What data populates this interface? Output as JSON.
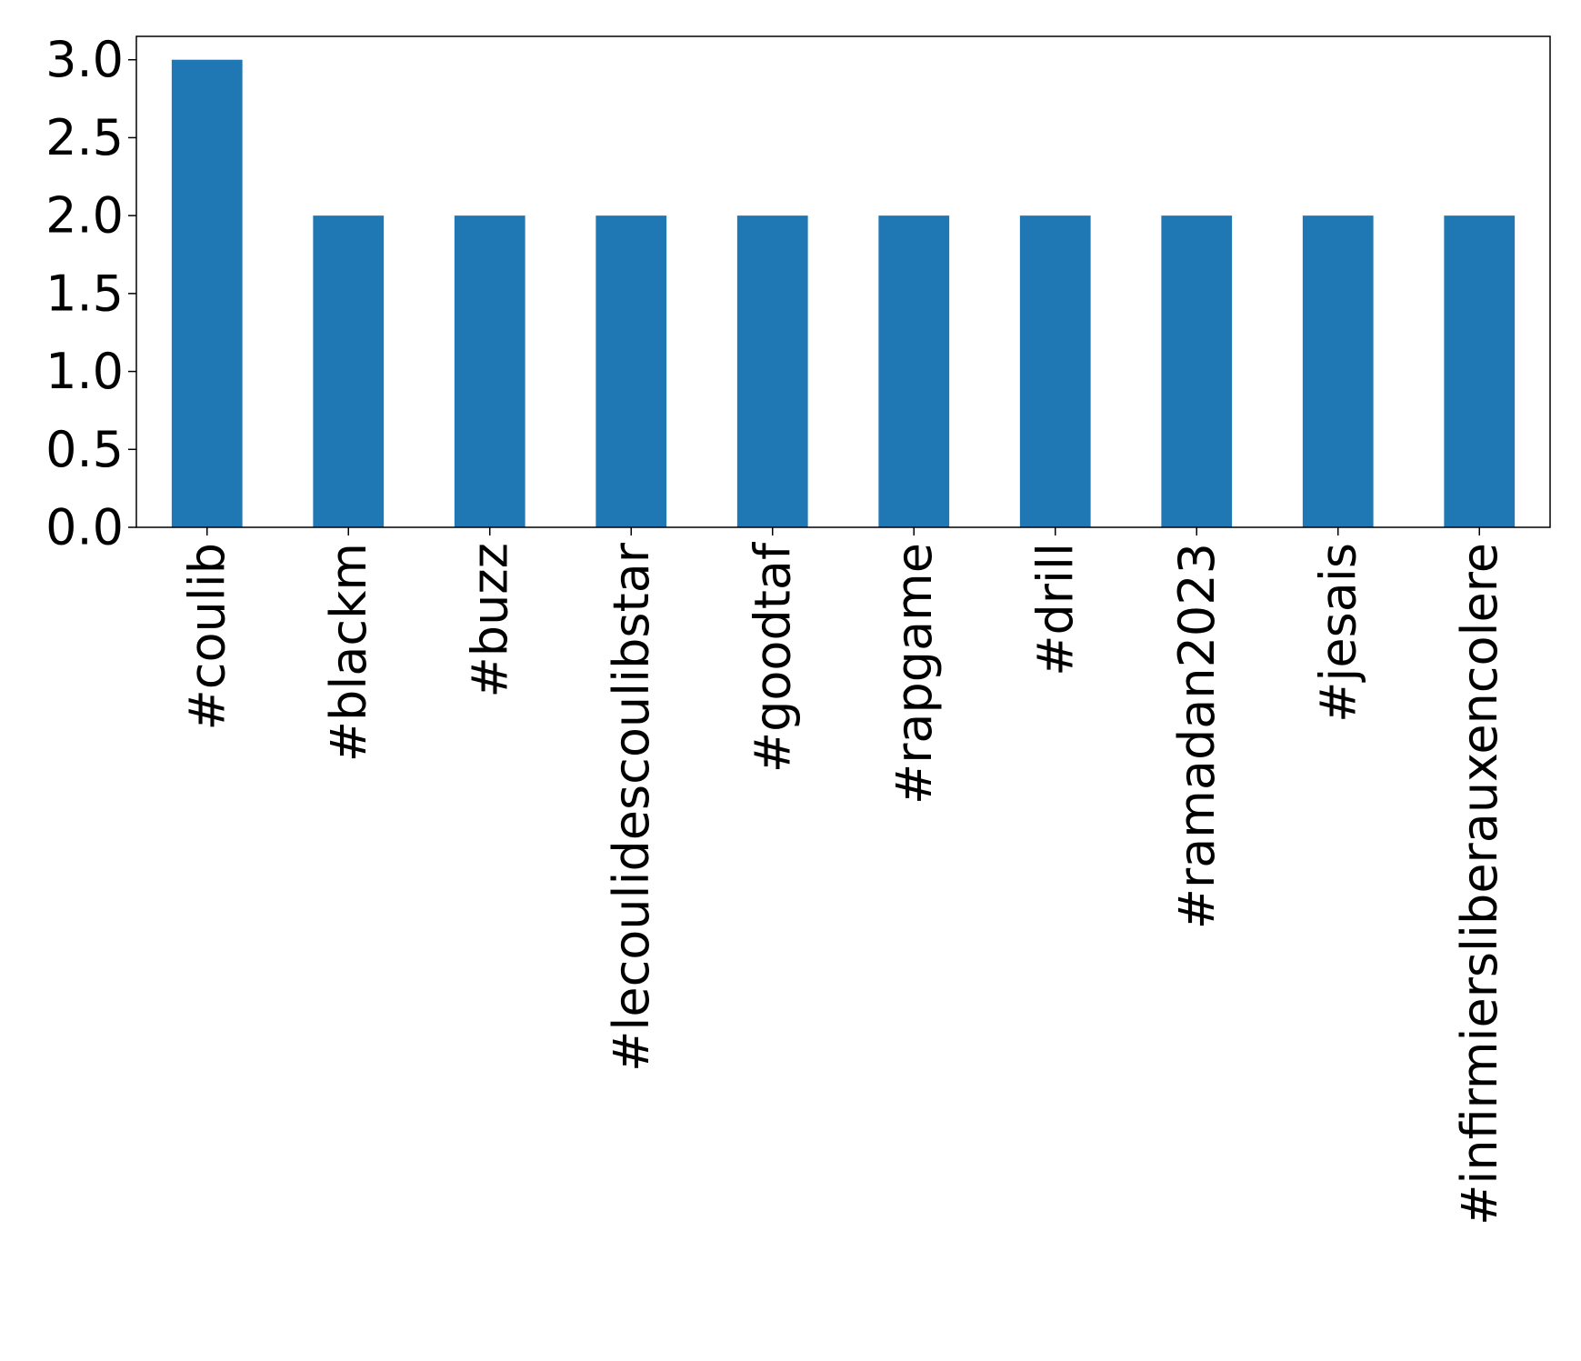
{
  "chart_data": {
    "type": "bar",
    "categories": [
      "#coulib",
      "#blackm",
      "#buzz",
      "#lecoulidescoulibstar",
      "#goodtaf",
      "#rapgame",
      "#drill",
      "#ramadan2023",
      "#jesais",
      "#infirmiersliberauxencolere"
    ],
    "values": [
      3,
      2,
      2,
      2,
      2,
      2,
      2,
      2,
      2,
      2
    ],
    "yticks": [
      "0.0",
      "0.5",
      "1.0",
      "1.5",
      "2.0",
      "2.5",
      "3.0"
    ],
    "ylim": [
      0,
      3.15
    ],
    "bar_color": "#1f77b4",
    "grid": false,
    "legend": "none"
  }
}
